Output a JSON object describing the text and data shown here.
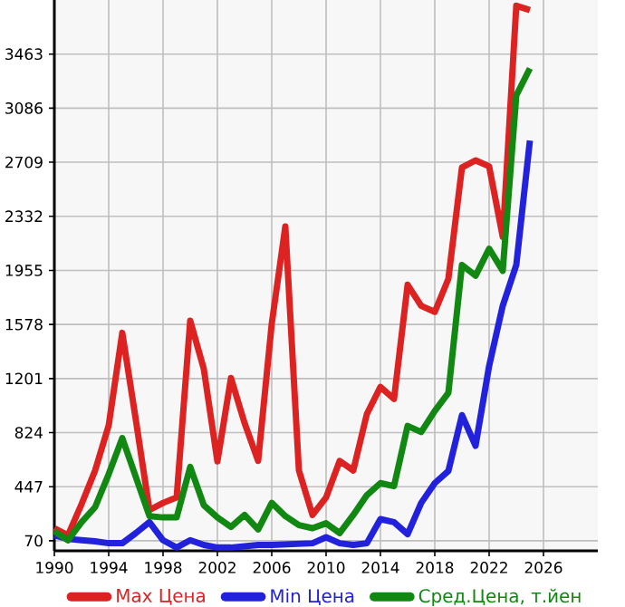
{
  "chart_data": {
    "type": "line",
    "x": [
      1990,
      1991,
      1992,
      1993,
      1994,
      1995,
      1996,
      1997,
      1998,
      1999,
      2000,
      2001,
      2002,
      2003,
      2004,
      2005,
      2006,
      2007,
      2008,
      2009,
      2010,
      2011,
      2012,
      2013,
      2014,
      2015,
      2016,
      2017,
      2018,
      2019,
      2020,
      2021,
      2022,
      2023,
      2024,
      2025
    ],
    "series": [
      {
        "name": "Max Цена",
        "color": "#dd2222",
        "values": [
          158,
          108,
          325,
          560,
          875,
          1520,
          912,
          284,
          334,
          372,
          1604,
          1268,
          623,
          1205,
          891,
          627,
          1583,
          2261,
          560,
          250,
          372,
          627,
          560,
          954,
          1142,
          1059,
          1855,
          1708,
          1666,
          1896,
          2672,
          2722,
          2680,
          2190,
          3800,
          3770
        ]
      },
      {
        "name": "Min Цена",
        "color": "#2222dd",
        "values": [
          108,
          83,
          74,
          66,
          53,
          53,
          124,
          200,
          74,
          23,
          74,
          41,
          23,
          23,
          32,
          41,
          41,
          45,
          49,
          53,
          95,
          53,
          41,
          53,
          221,
          200,
          116,
          334,
          472,
          556,
          946,
          732,
          1289,
          1708,
          1993,
          2861
        ]
      },
      {
        "name": "Сред.Цена, т.йен",
        "color": "#118811",
        "values": [
          137,
          74,
          200,
          305,
          535,
          786,
          514,
          242,
          233,
          233,
          585,
          318,
          233,
          167,
          250,
          149,
          334,
          242,
          179,
          158,
          192,
          124,
          250,
          388,
          472,
          451,
          871,
          828,
          975,
          1101,
          1993,
          1918,
          2106,
          1952,
          3175,
          3363
        ]
      }
    ],
    "xlim": [
      1990,
      2030
    ],
    "ylim": [
      0,
      3840
    ],
    "xticks": [
      1990,
      1994,
      1998,
      2002,
      2006,
      2010,
      2014,
      2018,
      2022,
      2026
    ],
    "yticks": [
      70,
      447,
      824,
      1201,
      1578,
      1955,
      2332,
      2709,
      3086,
      3463
    ],
    "grid": true,
    "legend": "bottom",
    "marker": "none",
    "line_style": "solid"
  }
}
